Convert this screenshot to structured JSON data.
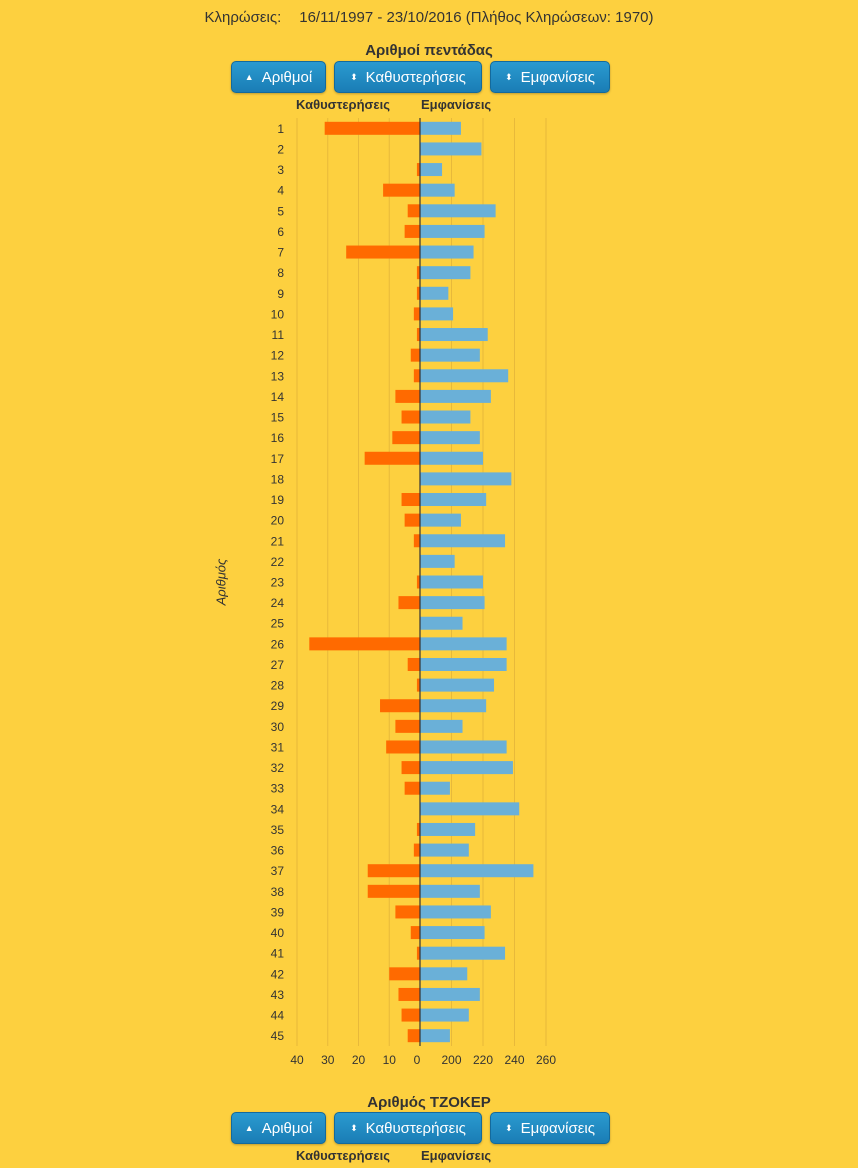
{
  "header": {
    "label": "Κληρώσεις:",
    "range": "16/11/1997 - 23/10/2016",
    "count": "(Πλήθος Κληρώσεων: 1970)"
  },
  "section1": {
    "title": "Αριθμοί πεντάδας",
    "btn_numbers": "Αριθμοί",
    "btn_delays": "Καθυστερήσεις",
    "btn_appearances": "Εμφανίσεις",
    "col_delays": "Καθυστερήσεις",
    "col_appearances": "Εμφανίσεις"
  },
  "section2": {
    "title": "Αριθμός ΤΖΟΚΕΡ",
    "btn_numbers": "Αριθμοί",
    "btn_delays": "Καθυστερήσεις",
    "btn_appearances": "Εμφανίσεις",
    "col_delays": "Καθυστερήσεις",
    "col_appearances": "Εμφανίσεις"
  },
  "colors": {
    "delays": "#ff6a00",
    "appearances": "#6ab0d8",
    "background": "#fdd03f"
  },
  "chart_data": {
    "type": "bar",
    "orientation": "horizontal",
    "ylabel": "Αριθμός",
    "categories": [
      "1",
      "2",
      "3",
      "4",
      "5",
      "6",
      "7",
      "8",
      "9",
      "10",
      "11",
      "12",
      "13",
      "14",
      "15",
      "16",
      "17",
      "18",
      "19",
      "20",
      "21",
      "22",
      "23",
      "24",
      "25",
      "26",
      "27",
      "28",
      "29",
      "30",
      "31",
      "32",
      "33",
      "34",
      "35",
      "36",
      "37",
      "38",
      "39",
      "40",
      "41",
      "42",
      "43",
      "44",
      "45"
    ],
    "series": [
      {
        "name": "Καθυστερήσεις",
        "axis_ticks": [
          "40",
          "30",
          "20",
          "10",
          "0"
        ],
        "xlim": [
          0,
          40
        ],
        "values": [
          31,
          0,
          1,
          12,
          4,
          5,
          24,
          1,
          1,
          2,
          1,
          3,
          2,
          8,
          6,
          9,
          18,
          0,
          6,
          5,
          2,
          0,
          1,
          7,
          0,
          36,
          4,
          1,
          13,
          8,
          11,
          6,
          5,
          0,
          1,
          2,
          17,
          17,
          8,
          3,
          1,
          10,
          7,
          6,
          4
        ]
      },
      {
        "name": "Εμφανίσεις",
        "axis_ticks": [
          "180",
          "200",
          "220",
          "240",
          "260"
        ],
        "xlim": [
          180,
          260
        ],
        "values": [
          206,
          219,
          194,
          202,
          228,
          221,
          214,
          212,
          198,
          201,
          223,
          218,
          236,
          225,
          212,
          218,
          220,
          238,
          222,
          206,
          234,
          202,
          220,
          221,
          207,
          235,
          235,
          227,
          222,
          207,
          235,
          239,
          199,
          243,
          215,
          211,
          252,
          218,
          225,
          221,
          234,
          210,
          218,
          211,
          199
        ]
      }
    ]
  }
}
